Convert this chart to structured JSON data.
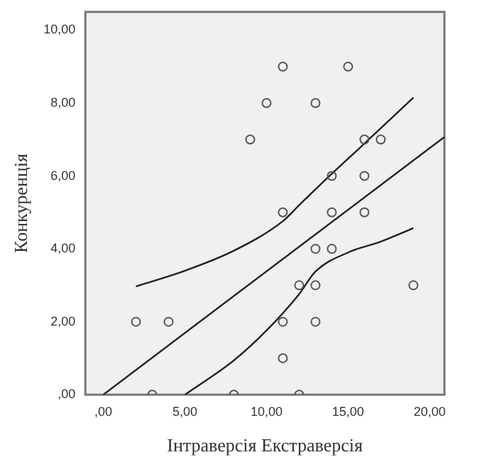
{
  "chart_data": {
    "type": "scatter",
    "xlabel": "Інтраверсія Екстраверсія",
    "ylabel": "Конкуренція",
    "grid": false,
    "legend": false,
    "xlim": [
      -1.1,
      20.9
    ],
    "ylim": [
      0,
      10.5
    ],
    "xticks": [
      {
        "value": 0,
        "label": ",00"
      },
      {
        "value": 5,
        "label": "5,00"
      },
      {
        "value": 10,
        "label": "10,00"
      },
      {
        "value": 15,
        "label": "15,00"
      },
      {
        "value": 20,
        "label": "20,00"
      }
    ],
    "yticks": [
      {
        "value": 0,
        "label": ",00"
      },
      {
        "value": 2,
        "label": "2,00"
      },
      {
        "value": 4,
        "label": "4,00"
      },
      {
        "value": 6,
        "label": "6,00"
      },
      {
        "value": 8,
        "label": "8,00"
      },
      {
        "value": 10,
        "label": "10,00"
      }
    ],
    "series": [
      {
        "type": "scatter",
        "marker": "circle",
        "color": "#555555",
        "x": [
          11,
          15,
          10,
          13,
          9,
          16,
          17,
          14,
          16,
          11,
          14,
          16,
          13,
          14,
          12,
          13,
          19,
          2,
          4,
          11,
          13,
          11,
          3,
          8,
          12
        ],
        "values": [
          9,
          9,
          8,
          8,
          7,
          7,
          7,
          6,
          6,
          5,
          5,
          5,
          4,
          4,
          3,
          3,
          3,
          2,
          2,
          2,
          2,
          1,
          0,
          0,
          0
        ]
      },
      {
        "type": "line",
        "marker": "none",
        "color": "#222222",
        "x": [
          0,
          20.9
        ],
        "values": [
          0,
          7.07
        ]
      },
      {
        "type": "line",
        "marker": "none",
        "color": "#222222",
        "x": [
          2,
          5,
          8,
          11,
          12,
          14,
          16,
          19
        ],
        "values": [
          2.97,
          3.4,
          3.95,
          4.76,
          5.2,
          6.06,
          6.89,
          8.15
        ]
      },
      {
        "type": "line",
        "marker": "none",
        "color": "#222222",
        "x": [
          5,
          8,
          10,
          12,
          13,
          15,
          17,
          19
        ],
        "values": [
          0,
          0.94,
          1.76,
          2.76,
          3.38,
          3.9,
          4.2,
          4.57
        ]
      }
    ]
  }
}
